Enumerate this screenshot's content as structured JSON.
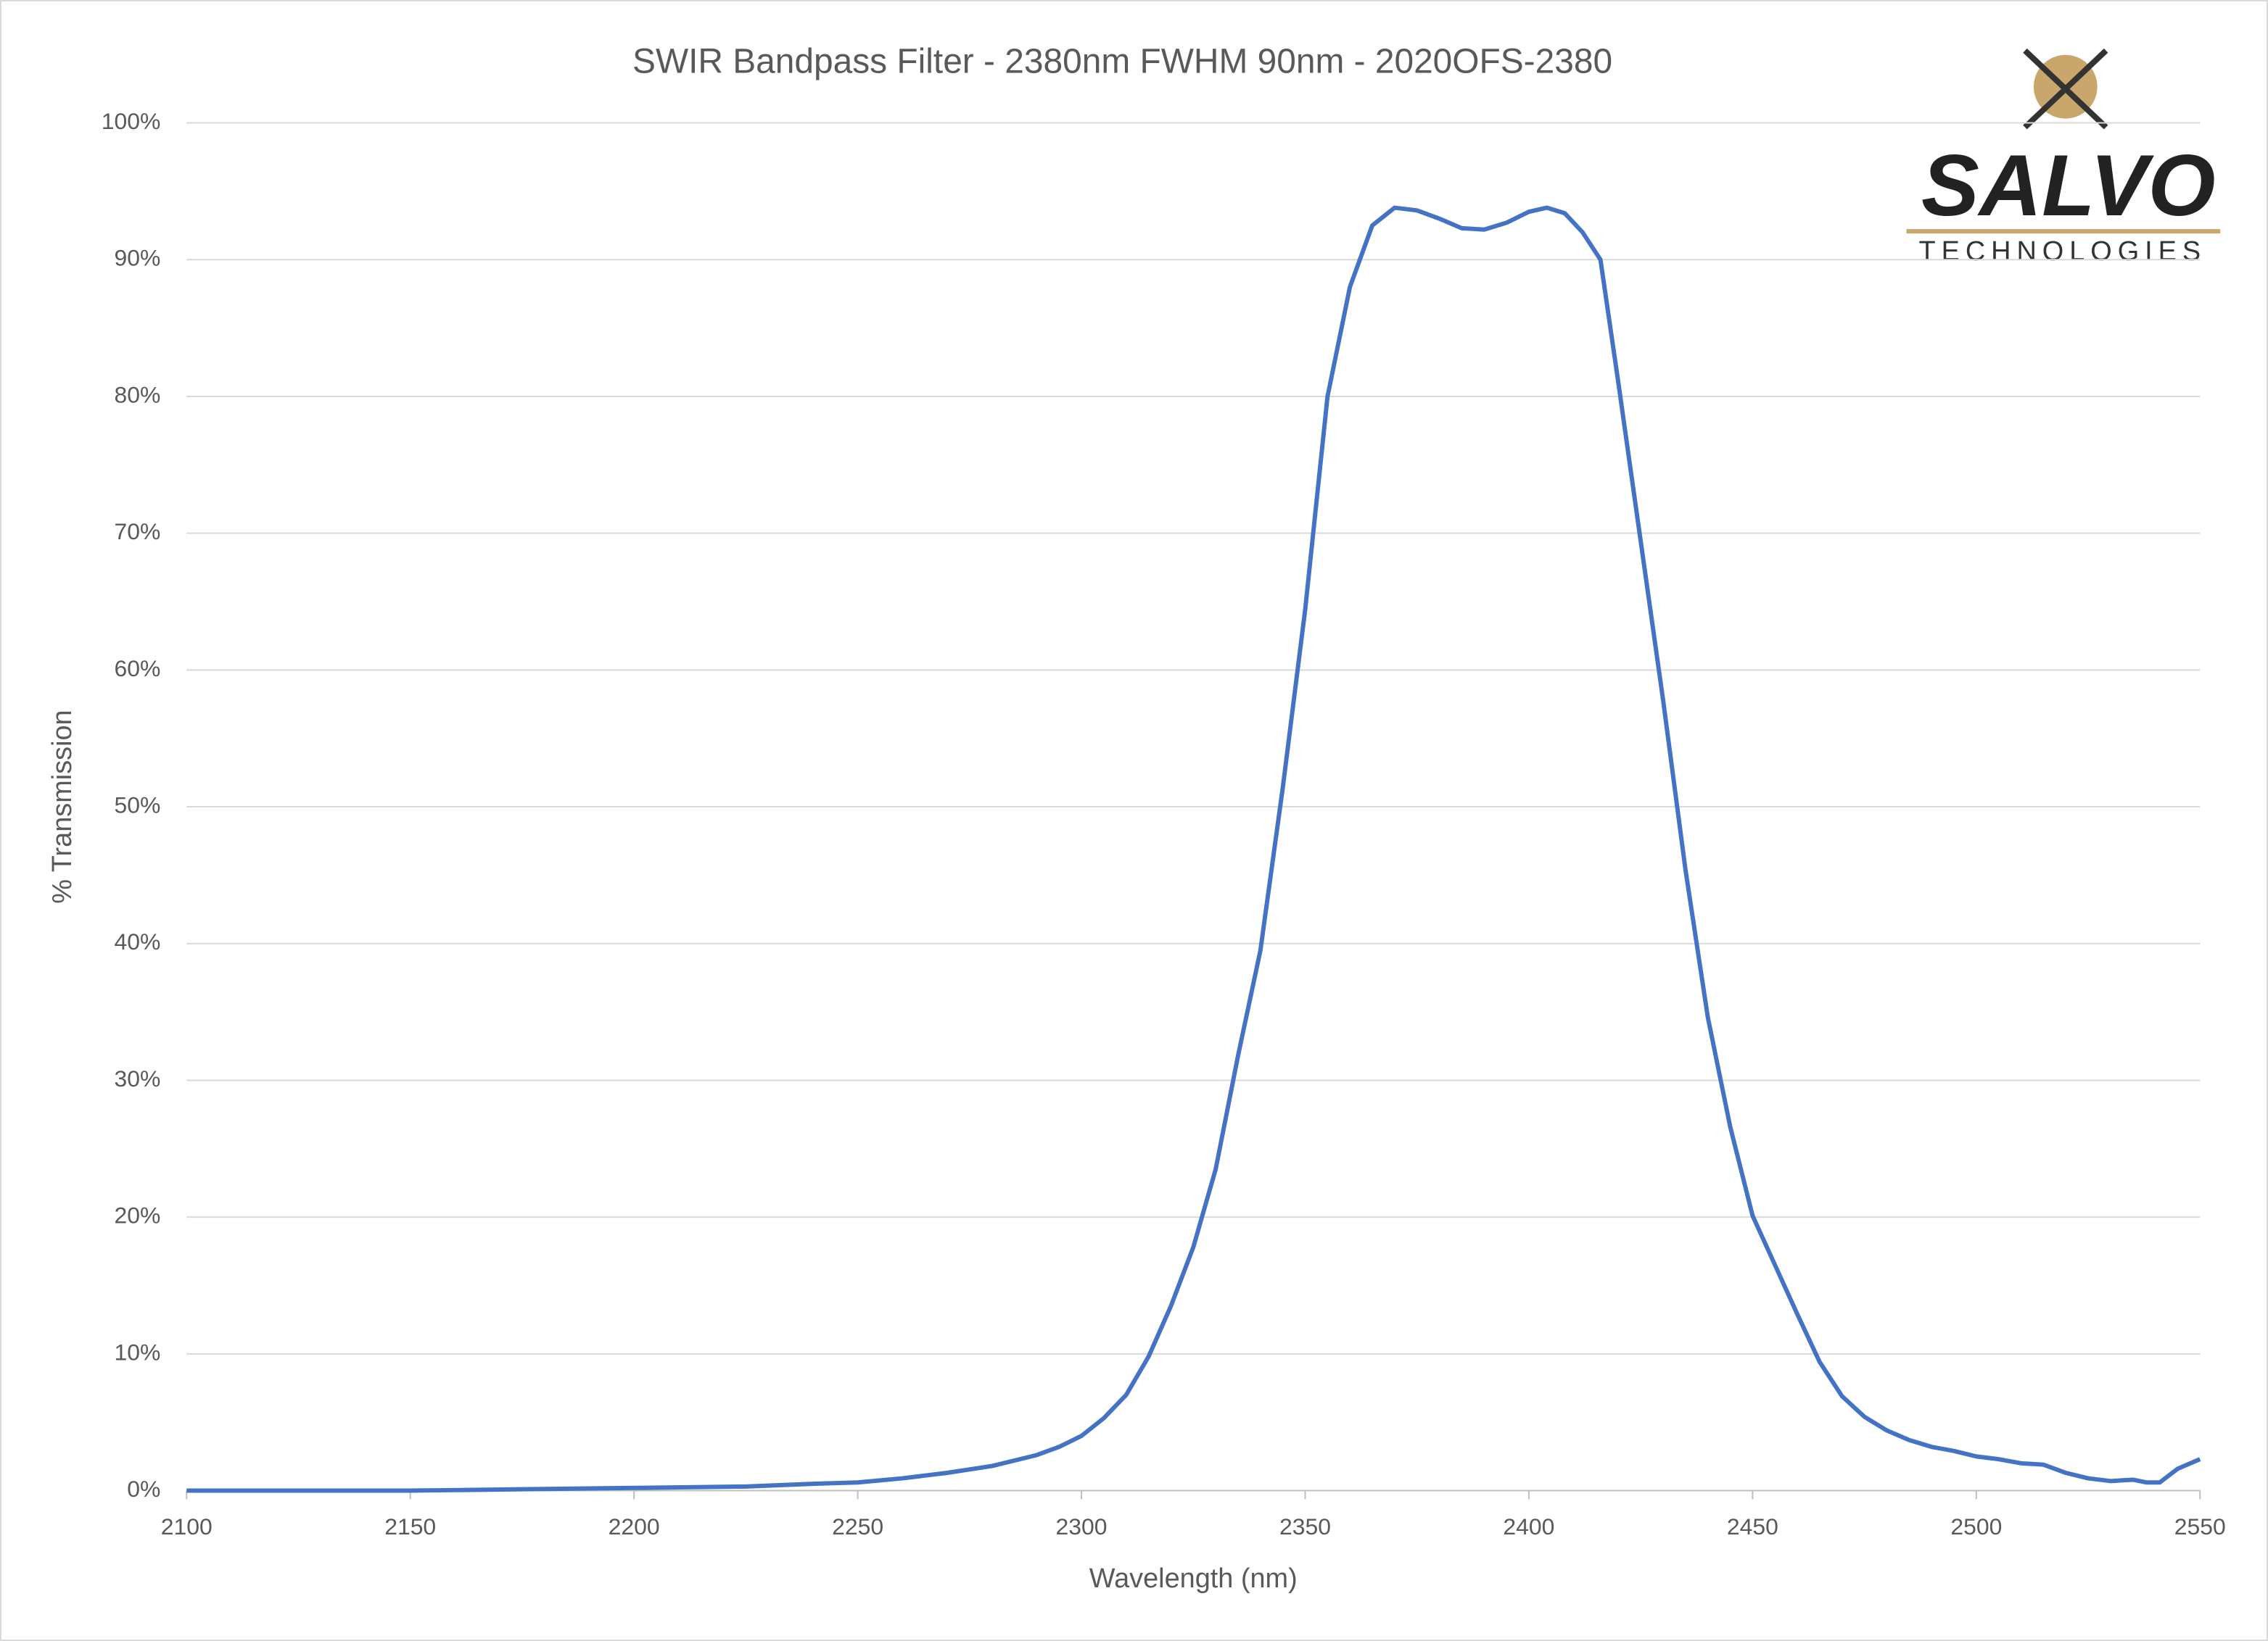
{
  "chart_data": {
    "type": "line",
    "title": "SWIR Bandpass Filter - 2380nm FWHM 90nm - 2020OFS-2380",
    "x_label": "Wavelength (nm)",
    "y_label": "% Transmission",
    "x": [
      2100,
      2150,
      2175,
      2200,
      2225,
      2240,
      2250,
      2260,
      2270,
      2280,
      2290,
      2295,
      2300,
      2305,
      2310,
      2315,
      2320,
      2325,
      2330,
      2335,
      2340,
      2345,
      2350,
      2355,
      2360,
      2365,
      2370,
      2375,
      2380,
      2385,
      2390,
      2395,
      2400,
      2404,
      2408,
      2412,
      2416,
      2420,
      2425,
      2430,
      2435,
      2440,
      2445,
      2450,
      2455,
      2460,
      2465,
      2470,
      2475,
      2480,
      2485,
      2490,
      2495,
      2500,
      2505,
      2510,
      2515,
      2520,
      2525,
      2530,
      2535,
      2538,
      2541,
      2545,
      2550
    ],
    "series": [
      {
        "name": "2020OFS-2380",
        "color": "#4472c4",
        "values": [
          0,
          0,
          0.1,
          0.2,
          0.3,
          0.5,
          0.6,
          0.9,
          1.3,
          1.8,
          2.6,
          3.2,
          4,
          5.3,
          7,
          9.8,
          13.5,
          17.8,
          23.5,
          31.8,
          39.5,
          51.4,
          64.4,
          80,
          88,
          92.5,
          93.8,
          93.6,
          93,
          92.3,
          92.2,
          92.7,
          93.5,
          93.8,
          93.4,
          92,
          90,
          81,
          69.4,
          57.8,
          45.4,
          34.6,
          26.6,
          20.1,
          16.5,
          12.9,
          9.4,
          6.9,
          5.4,
          4.4,
          3.7,
          3.2,
          2.9,
          2.5,
          2.3,
          2,
          1.9,
          1.3,
          0.9,
          0.7,
          0.8,
          0.6,
          0.6,
          1.6,
          2.3
        ]
      }
    ],
    "xlim": [
      2100,
      2550
    ],
    "xticks": [
      2100,
      2150,
      2200,
      2250,
      2300,
      2350,
      2400,
      2450,
      2500,
      2550
    ],
    "ylim": [
      0,
      100
    ],
    "yticks": [
      {
        "value": 0,
        "label": "0%"
      },
      {
        "value": 10,
        "label": "10%"
      },
      {
        "value": 20,
        "label": "20%"
      },
      {
        "value": 30,
        "label": "30%"
      },
      {
        "value": 40,
        "label": "40%"
      },
      {
        "value": 50,
        "label": "50%"
      },
      {
        "value": 60,
        "label": "60%"
      },
      {
        "value": 70,
        "label": "70%"
      },
      {
        "value": 80,
        "label": "80%"
      },
      {
        "value": 90,
        "label": "90%"
      },
      {
        "value": 100,
        "label": "100%"
      }
    ],
    "grid": true
  },
  "logo": {
    "name": "SALVO",
    "tagline": "TECHNOLOGIES"
  }
}
